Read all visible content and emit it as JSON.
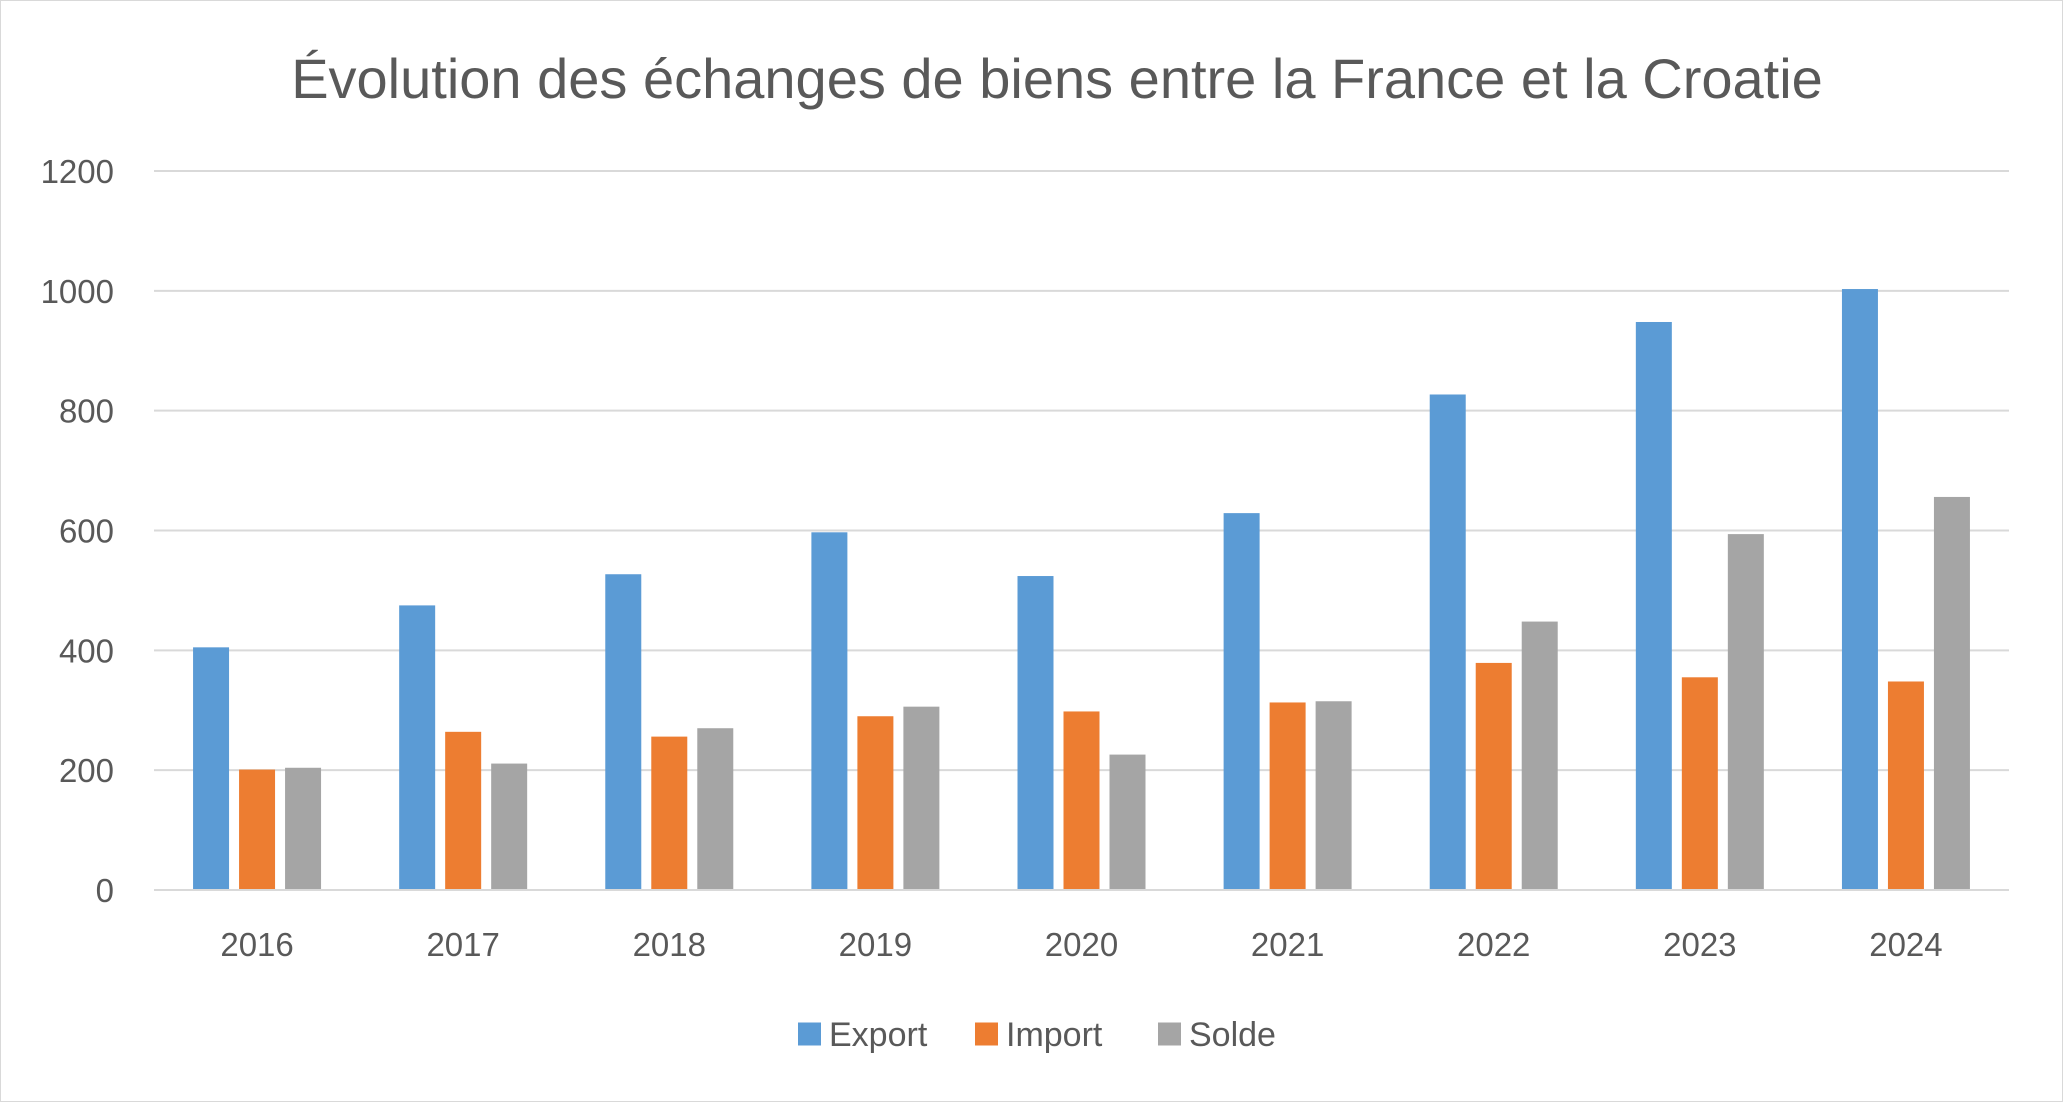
{
  "chart_data": {
    "type": "bar",
    "title": "Évolution des échanges de biens entre la France et la Croatie",
    "xlabel": "",
    "ylabel": "",
    "categories": [
      "2016",
      "2017",
      "2018",
      "2019",
      "2020",
      "2021",
      "2022",
      "2023",
      "2024"
    ],
    "series": [
      {
        "name": "Export",
        "color": "#5b9bd5",
        "values": [
          405,
          475,
          527,
          597,
          524,
          629,
          827,
          948,
          1003
        ]
      },
      {
        "name": "Import",
        "color": "#ed7d31",
        "values": [
          201,
          264,
          256,
          290,
          298,
          313,
          379,
          355,
          348
        ]
      },
      {
        "name": "Solde",
        "color": "#a5a5a5",
        "values": [
          204,
          211,
          270,
          306,
          226,
          315,
          448,
          594,
          656
        ]
      }
    ],
    "y_ticks": [
      "0",
      "200",
      "400",
      "600",
      "800",
      "1000",
      "1200"
    ],
    "ylim": [
      0,
      1200
    ],
    "grid": true,
    "legend_position": "bottom"
  }
}
